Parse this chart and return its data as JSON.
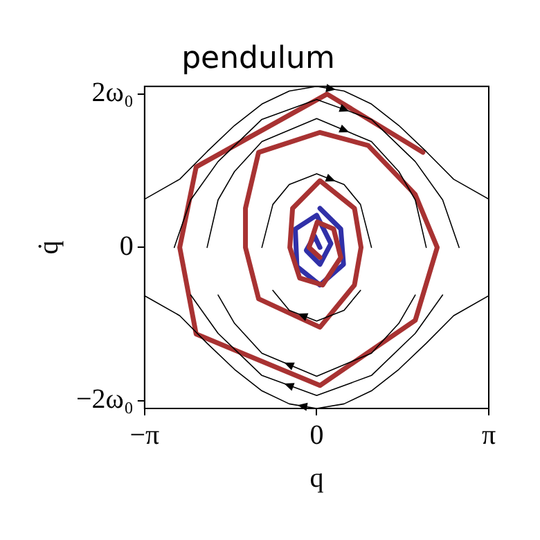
{
  "chart_data": {
    "type": "line",
    "title": "pendulum",
    "xlabel": "q",
    "ylabel": "q̇",
    "xlim": [
      -3.1416,
      3.1416
    ],
    "ylim": [
      -2.1,
      2.1
    ],
    "xticks": [
      {
        "value": -3.1416,
        "label": "−π"
      },
      0,
      {
        "value": 3.1416,
        "label": "π"
      }
    ],
    "yticks": [
      {
        "value": -2,
        "label": "−2ω₀"
      },
      0,
      {
        "value": 2,
        "label": "2ω₀"
      }
    ],
    "grid": false,
    "legend": false,
    "marker": "none",
    "line_style": "solid",
    "series": [
      {
        "color": "#000000",
        "x": [
          -1,
          -0.8,
          -0.5,
          0,
          0.5,
          0.8,
          1
        ],
        "values": [
          0,
          0.56,
          0.82,
          0.96,
          0.82,
          0.56,
          0
        ]
      },
      {
        "color": "#000000",
        "x": [
          0.8,
          0.5,
          0,
          -0.5,
          -0.8
        ],
        "values": [
          -0.56,
          -0.82,
          -0.96,
          -0.82,
          -0.56
        ]
      },
      {
        "color": "#000000",
        "x": [
          -2,
          -1.8,
          -1.5,
          -1,
          0,
          1,
          1.5,
          1.8,
          2
        ],
        "values": [
          0,
          0.62,
          0.99,
          1.38,
          1.68,
          1.38,
          0.99,
          0.62,
          0
        ]
      },
      {
        "color": "#000000",
        "x": [
          1.8,
          1.5,
          1,
          0,
          -1,
          -1.5,
          -1.8
        ],
        "values": [
          -0.62,
          -0.99,
          -1.38,
          -1.68,
          -1.38,
          -0.99,
          -0.62
        ]
      },
      {
        "color": "#000000",
        "x": [
          -2.6,
          -2.3,
          -1.8,
          -1,
          0,
          1,
          1.8,
          2.3,
          2.6
        ],
        "values": [
          0,
          0.62,
          1.12,
          1.67,
          1.93,
          1.67,
          1.12,
          0.62,
          0
        ]
      },
      {
        "color": "#000000",
        "x": [
          2.3,
          1.8,
          1,
          0,
          -1,
          -1.8,
          -2.3
        ],
        "values": [
          -0.62,
          -1.12,
          -1.67,
          -1.93,
          -1.67,
          -1.12,
          -0.62
        ]
      },
      {
        "color": "#000000",
        "x": [
          -3.14,
          -2.5,
          -2,
          -1.5,
          -1,
          -0.5,
          0,
          0.5,
          1,
          1.5,
          2,
          2.5,
          3.14
        ],
        "values": [
          0.63,
          0.89,
          1.25,
          1.59,
          1.87,
          2.04,
          2.1,
          2.04,
          1.87,
          1.59,
          1.25,
          0.89,
          0.63
        ]
      },
      {
        "color": "#000000",
        "x": [
          3.14,
          2.5,
          2,
          1.5,
          1,
          0.5,
          0,
          -0.5,
          -1,
          -1.5,
          -2,
          -2.5,
          -3.14
        ],
        "values": [
          -0.63,
          -0.89,
          -1.25,
          -1.59,
          -1.87,
          -2.04,
          -2.1,
          -2.04,
          -1.87,
          -1.59,
          -1.25,
          -0.89,
          -0.63
        ]
      },
      {
        "color": "#a83232",
        "x": [
          1.94,
          0.19,
          -2.2,
          -2.5,
          -2.2,
          0.06,
          1.8,
          2.2,
          1.8,
          0.94,
          0.06,
          -1.06,
          -1.3,
          -1.3,
          -1.06,
          0.06,
          0.69,
          0.81,
          0.69,
          0.06,
          -0.44,
          -0.49,
          -0.31,
          0.11,
          0.44,
          0.31,
          0.01,
          -0.14,
          0.06
        ],
        "values": [
          1.24,
          2.0,
          1.05,
          0,
          -1.13,
          -1.8,
          -0.95,
          0,
          0.69,
          1.33,
          1.5,
          1.24,
          0.51,
          0,
          -0.67,
          -1.04,
          -0.49,
          0,
          0.51,
          0.87,
          0.51,
          0,
          -0.4,
          -0.49,
          -0.13,
          0.24,
          0.33,
          0,
          -0.13
        ]
      },
      {
        "color": "#3030a8",
        "x": [
          0.06,
          0.44,
          0.49,
          0.06,
          -0.36,
          -0.39,
          0,
          0.26,
          0.06,
          -0.19,
          -0.04,
          0.06
        ],
        "values": [
          0.51,
          0.24,
          -0.22,
          -0.49,
          -0.25,
          0.24,
          0.42,
          0.05,
          -0.22,
          -0.04,
          0.15,
          0
        ]
      }
    ]
  }
}
